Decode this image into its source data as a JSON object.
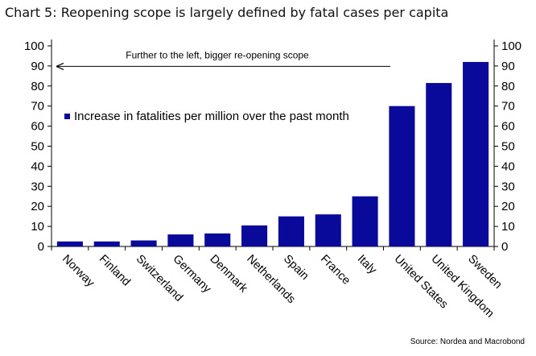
{
  "title": "Chart 5: Reopening scope is largely defined by fatal cases per capita",
  "source": "Source: Nordea and Macrobond",
  "chart_data": {
    "type": "bar",
    "title": "Chart 5: Reopening scope is largely defined by fatal cases per capita",
    "categories": [
      "Norway",
      "Finland",
      "Switzerland",
      "Germany",
      "Denmark",
      "Netherlands",
      "Spain",
      "France",
      "Italy",
      "United States",
      "United Kingdom",
      "Sweden"
    ],
    "series": [
      {
        "name": "Increase in fatalities per million over the past month",
        "values": [
          2.5,
          2.5,
          3,
          6,
          6.5,
          10.5,
          15,
          16,
          25,
          70,
          81.5,
          92
        ],
        "color": "#0a0a9a"
      }
    ],
    "ylim": [
      0,
      100
    ],
    "yticks": [
      0,
      10,
      20,
      30,
      40,
      50,
      60,
      70,
      80,
      90,
      100
    ],
    "y_axis_both_sides": true,
    "grid": false,
    "legend_position": "upper-left",
    "annotation": {
      "text": "Further to the left, bigger re-opening scope",
      "arrow_direction": "left",
      "y_value": 89
    }
  }
}
